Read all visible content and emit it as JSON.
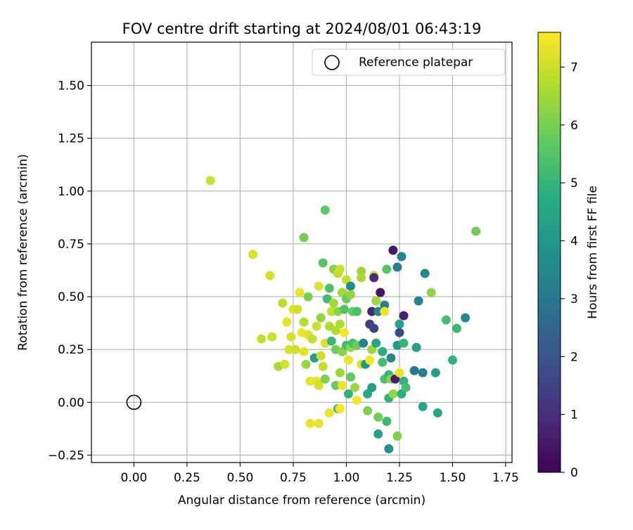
{
  "chart_data": {
    "type": "scatter",
    "title": "FOV centre drift starting at 2024/08/01 06:43:19",
    "xlabel": "Angular distance from reference (arcmin)",
    "ylabel": "Rotation from reference (arcmin)",
    "xlim": [
      -0.2,
      1.78
    ],
    "ylim": [
      -0.285,
      1.705
    ],
    "xticks": [
      0.0,
      0.25,
      0.5,
      0.75,
      1.0,
      1.25,
      1.5,
      1.75
    ],
    "xtick_labels": [
      "0.00",
      "0.25",
      "0.50",
      "0.75",
      "1.00",
      "1.25",
      "1.50",
      "1.75"
    ],
    "yticks": [
      -0.25,
      0.0,
      0.25,
      0.5,
      0.75,
      1.0,
      1.25,
      1.5
    ],
    "ytick_labels": [
      "−0.25",
      "0.00",
      "0.25",
      "0.50",
      "0.75",
      "1.00",
      "1.25",
      "1.50"
    ],
    "grid": true,
    "legend": {
      "placement": "top-right",
      "entries": [
        "Reference platepar"
      ]
    },
    "reference_point": {
      "x": 0.0,
      "y": 0.0,
      "marker": "open-circle",
      "color": "#000000"
    },
    "colorbar": {
      "label": "Hours from first FF file",
      "colormap": "viridis",
      "range": [
        0,
        7.6
      ],
      "ticks": [
        0,
        1,
        2,
        3,
        4,
        5,
        6,
        7
      ],
      "tick_labels": [
        "0",
        "1",
        "2",
        "3",
        "4",
        "5",
        "6",
        "7"
      ]
    },
    "series": [
      {
        "color_by": "hours",
        "points": [
          {
            "x": 0.36,
            "y": 1.05,
            "hours": 7.0
          },
          {
            "x": 0.56,
            "y": 0.7,
            "hours": 7.1
          },
          {
            "x": 0.64,
            "y": 0.6,
            "hours": 7.1
          },
          {
            "x": 0.6,
            "y": 0.3,
            "hours": 6.9
          },
          {
            "x": 0.65,
            "y": 0.31,
            "hours": 7.0
          },
          {
            "x": 0.68,
            "y": 0.17,
            "hours": 6.5
          },
          {
            "x": 0.7,
            "y": 0.47,
            "hours": 6.8
          },
          {
            "x": 0.71,
            "y": 0.18,
            "hours": 7.1
          },
          {
            "x": 0.72,
            "y": 0.38,
            "hours": 7.3
          },
          {
            "x": 0.73,
            "y": 0.25,
            "hours": 7.2
          },
          {
            "x": 0.74,
            "y": 0.31,
            "hours": 7.1
          },
          {
            "x": 0.75,
            "y": 0.44,
            "hours": 7.2
          },
          {
            "x": 0.76,
            "y": 0.25,
            "hours": 7.0
          },
          {
            "x": 0.77,
            "y": 0.44,
            "hours": 7.1
          },
          {
            "x": 0.78,
            "y": 0.52,
            "hours": 7.3
          },
          {
            "x": 0.79,
            "y": 0.33,
            "hours": 7.4
          },
          {
            "x": 0.8,
            "y": 0.78,
            "hours": 5.9
          },
          {
            "x": 0.8,
            "y": 0.38,
            "hours": 6.7
          },
          {
            "x": 0.8,
            "y": 0.24,
            "hours": 7.3
          },
          {
            "x": 0.81,
            "y": 0.18,
            "hours": 6.4
          },
          {
            "x": 0.82,
            "y": 0.5,
            "hours": 6.0
          },
          {
            "x": 0.82,
            "y": 0.32,
            "hours": 7.2
          },
          {
            "x": 0.83,
            "y": 0.1,
            "hours": 7.3
          },
          {
            "x": 0.83,
            "y": -0.1,
            "hours": 7.4
          },
          {
            "x": 0.84,
            "y": 0.3,
            "hours": 6.9
          },
          {
            "x": 0.85,
            "y": 0.21,
            "hours": 4.2
          },
          {
            "x": 0.86,
            "y": 0.36,
            "hours": 7.0
          },
          {
            "x": 0.86,
            "y": 0.1,
            "hours": 7.3
          },
          {
            "x": 0.87,
            "y": 0.55,
            "hours": 7.2
          },
          {
            "x": 0.87,
            "y": -0.1,
            "hours": 7.3
          },
          {
            "x": 0.87,
            "y": 0.08,
            "hours": 7.1
          },
          {
            "x": 0.88,
            "y": 0.4,
            "hours": 6.3
          },
          {
            "x": 0.88,
            "y": 0.22,
            "hours": 7.0
          },
          {
            "x": 0.89,
            "y": 0.66,
            "hours": 5.6
          },
          {
            "x": 0.89,
            "y": 0.17,
            "hours": 6.9
          },
          {
            "x": 0.9,
            "y": 0.91,
            "hours": 5.7
          },
          {
            "x": 0.9,
            "y": 0.28,
            "hours": 7.2
          },
          {
            "x": 0.9,
            "y": 0.11,
            "hours": 6.1
          },
          {
            "x": 0.91,
            "y": 0.49,
            "hours": 5.2
          },
          {
            "x": 0.92,
            "y": 0.54,
            "hours": 5.4
          },
          {
            "x": 0.92,
            "y": 0.36,
            "hours": 6.6
          },
          {
            "x": 0.92,
            "y": -0.05,
            "hours": 7.4
          },
          {
            "x": 0.93,
            "y": 0.43,
            "hours": 6.9
          },
          {
            "x": 0.93,
            "y": 0.29,
            "hours": 5.1
          },
          {
            "x": 0.94,
            "y": 0.63,
            "hours": 6.2
          },
          {
            "x": 0.94,
            "y": 0.47,
            "hours": 6.5
          },
          {
            "x": 0.95,
            "y": 0.34,
            "hours": 6.7
          },
          {
            "x": 0.95,
            "y": 0.25,
            "hours": 5.9
          },
          {
            "x": 0.95,
            "y": 0.08,
            "hours": 5.8
          },
          {
            "x": 0.96,
            "y": 0.61,
            "hours": 6.8
          },
          {
            "x": 0.96,
            "y": 0.43,
            "hours": 6.2
          },
          {
            "x": 0.96,
            "y": -0.03,
            "hours": 5.2
          },
          {
            "x": 0.97,
            "y": 0.63,
            "hours": 7.0
          },
          {
            "x": 0.97,
            "y": 0.37,
            "hours": 6.7
          },
          {
            "x": 0.97,
            "y": 0.14,
            "hours": 6.4
          },
          {
            "x": 0.97,
            "y": -0.03,
            "hours": 7.5
          },
          {
            "x": 0.98,
            "y": 0.52,
            "hours": 6.5
          },
          {
            "x": 0.98,
            "y": 0.24,
            "hours": 6.2
          },
          {
            "x": 0.98,
            "y": 0.08,
            "hours": 7.4
          },
          {
            "x": 0.99,
            "y": 0.44,
            "hours": 5.5
          },
          {
            "x": 0.99,
            "y": 0.33,
            "hours": 7.5
          },
          {
            "x": 1.0,
            "y": 0.58,
            "hours": 6.9
          },
          {
            "x": 1.0,
            "y": 0.49,
            "hours": 5.8
          },
          {
            "x": 1.0,
            "y": 0.27,
            "hours": 5.2
          },
          {
            "x": 1.01,
            "y": 0.2,
            "hours": 7.4
          },
          {
            "x": 1.01,
            "y": 0.04,
            "hours": 4.9
          },
          {
            "x": 1.02,
            "y": 0.55,
            "hours": 3.6
          },
          {
            "x": 1.02,
            "y": 0.51,
            "hours": 6.3
          },
          {
            "x": 1.02,
            "y": 0.12,
            "hours": 5.7
          },
          {
            "x": 1.02,
            "y": 0.26,
            "hours": 6.3
          },
          {
            "x": 1.03,
            "y": 0.43,
            "hours": 5.8
          },
          {
            "x": 1.03,
            "y": 0.28,
            "hours": 5.3
          },
          {
            "x": 1.04,
            "y": 0.07,
            "hours": 6.4
          },
          {
            "x": 1.05,
            "y": 0.43,
            "hours": 5.4
          },
          {
            "x": 1.05,
            "y": 0.27,
            "hours": 5.9
          },
          {
            "x": 1.05,
            "y": 0.01,
            "hours": 7.5
          },
          {
            "x": 1.07,
            "y": 0.62,
            "hours": 6.4
          },
          {
            "x": 1.07,
            "y": 0.59,
            "hours": 6.6
          },
          {
            "x": 1.07,
            "y": 0.18,
            "hours": 7.2
          },
          {
            "x": 1.08,
            "y": 0.28,
            "hours": 3.4
          },
          {
            "x": 1.09,
            "y": 0.18,
            "hours": 4.0
          },
          {
            "x": 1.1,
            "y": 0.04,
            "hours": 4.6
          },
          {
            "x": 1.1,
            "y": -0.04,
            "hours": 6.1
          },
          {
            "x": 1.11,
            "y": 0.37,
            "hours": 1.4
          },
          {
            "x": 1.11,
            "y": 0.2,
            "hours": 7.5
          },
          {
            "x": 1.12,
            "y": 0.43,
            "hours": 0.8
          },
          {
            "x": 1.12,
            "y": 0.25,
            "hours": 6.4
          },
          {
            "x": 1.12,
            "y": 0.07,
            "hours": 4.3
          },
          {
            "x": 1.13,
            "y": 0.6,
            "hours": 6.8
          },
          {
            "x": 1.13,
            "y": 0.59,
            "hours": 1.0
          },
          {
            "x": 1.13,
            "y": 0.35,
            "hours": 1.5
          },
          {
            "x": 1.14,
            "y": 0.48,
            "hours": 6.5
          },
          {
            "x": 1.14,
            "y": 0.28,
            "hours": 4.5
          },
          {
            "x": 1.15,
            "y": 0.43,
            "hours": 3.4
          },
          {
            "x": 1.15,
            "y": -0.07,
            "hours": 5.9
          },
          {
            "x": 1.15,
            "y": -0.15,
            "hours": 4.3
          },
          {
            "x": 1.16,
            "y": 0.52,
            "hours": 0.4
          },
          {
            "x": 1.17,
            "y": 0.19,
            "hours": 5.3
          },
          {
            "x": 1.17,
            "y": 0.24,
            "hours": 4.7
          },
          {
            "x": 1.18,
            "y": 0.46,
            "hours": 3.3
          },
          {
            "x": 1.18,
            "y": 0.43,
            "hours": 7.4
          },
          {
            "x": 1.18,
            "y": 0.11,
            "hours": 5.4
          },
          {
            "x": 1.19,
            "y": 0.63,
            "hours": 5.6
          },
          {
            "x": 1.19,
            "y": -0.09,
            "hours": 5.1
          },
          {
            "x": 1.2,
            "y": 0.13,
            "hours": 5.0
          },
          {
            "x": 1.2,
            "y": 0.02,
            "hours": 4.9
          },
          {
            "x": 1.2,
            "y": -0.22,
            "hours": 3.8
          },
          {
            "x": 1.21,
            "y": 0.21,
            "hours": 3.5
          },
          {
            "x": 1.21,
            "y": 0.11,
            "hours": 6.2
          },
          {
            "x": 1.22,
            "y": 0.72,
            "hours": 0.5
          },
          {
            "x": 1.22,
            "y": 0.04,
            "hours": 6.3
          },
          {
            "x": 1.23,
            "y": 0.11,
            "hours": 0.6
          },
          {
            "x": 1.24,
            "y": 0.64,
            "hours": 3.2
          },
          {
            "x": 1.24,
            "y": 0.27,
            "hours": 4.1
          },
          {
            "x": 1.24,
            "y": -0.16,
            "hours": 6.1
          },
          {
            "x": 1.25,
            "y": 0.37,
            "hours": 4.4
          },
          {
            "x": 1.25,
            "y": 0.33,
            "hours": 1.7
          },
          {
            "x": 1.25,
            "y": 0.14,
            "hours": 7.4
          },
          {
            "x": 1.26,
            "y": 0.69,
            "hours": 3.5
          },
          {
            "x": 1.26,
            "y": 0.04,
            "hours": 4.8
          },
          {
            "x": 1.27,
            "y": 0.41,
            "hours": 0.7
          },
          {
            "x": 1.27,
            "y": 0.28,
            "hours": 5.0
          },
          {
            "x": 1.27,
            "y": 0.1,
            "hours": 5.0
          },
          {
            "x": 1.28,
            "y": 0.07,
            "hours": 5.3
          },
          {
            "x": 1.32,
            "y": 0.15,
            "hours": 2.9
          },
          {
            "x": 1.33,
            "y": 0.26,
            "hours": 4.3
          },
          {
            "x": 1.34,
            "y": 0.48,
            "hours": 3.4
          },
          {
            "x": 1.36,
            "y": 0.14,
            "hours": 3.3
          },
          {
            "x": 1.36,
            "y": -0.02,
            "hours": 4.5
          },
          {
            "x": 1.37,
            "y": 0.61,
            "hours": 3.5
          },
          {
            "x": 1.4,
            "y": 0.52,
            "hours": 6.3
          },
          {
            "x": 1.42,
            "y": 0.14,
            "hours": 4.2
          },
          {
            "x": 1.43,
            "y": -0.05,
            "hours": 4.5
          },
          {
            "x": 1.47,
            "y": 0.39,
            "hours": 5.3
          },
          {
            "x": 1.5,
            "y": 0.2,
            "hours": 4.9
          },
          {
            "x": 1.52,
            "y": 0.35,
            "hours": 5.1
          },
          {
            "x": 1.56,
            "y": 0.4,
            "hours": 3.5
          },
          {
            "x": 1.61,
            "y": 0.81,
            "hours": 5.9
          }
        ]
      }
    ]
  }
}
